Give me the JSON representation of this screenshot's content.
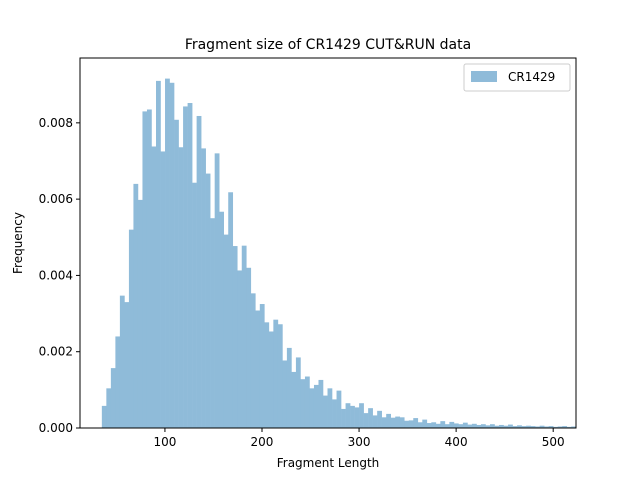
{
  "chart_data": {
    "type": "bar",
    "title": "Fragment size of CR1429 CUT&RUN data",
    "xlabel": "Fragment Length",
    "ylabel": "Frequency",
    "xlim": [
      12.5,
      523.5
    ],
    "ylim": [
      0,
      0.0097
    ],
    "xticks": [
      100,
      200,
      300,
      400,
      500
    ],
    "xtick_labels": [
      "100",
      "200",
      "300",
      "400",
      "500"
    ],
    "yticks": [
      0,
      0.002,
      0.004,
      0.006,
      0.008
    ],
    "ytick_labels": [
      "0.000",
      "0.002",
      "0.004",
      "0.006",
      "0.008"
    ],
    "grid": false,
    "legend": "top-right",
    "series": [
      {
        "name": "CR1429",
        "color": "#8fbbd9",
        "bin_start": 35,
        "bin_width": 4.65,
        "values": [
          0.00058,
          0.00104,
          0.00157,
          0.0024,
          0.00347,
          0.0033,
          0.0052,
          0.0064,
          0.00598,
          0.0083,
          0.00835,
          0.00738,
          0.0091,
          0.00725,
          0.00916,
          0.00905,
          0.00808,
          0.00736,
          0.00843,
          0.00852,
          0.00643,
          0.00818,
          0.00733,
          0.00667,
          0.0055,
          0.0072,
          0.00567,
          0.00507,
          0.00618,
          0.00477,
          0.00413,
          0.00478,
          0.0042,
          0.00353,
          0.00308,
          0.00325,
          0.00277,
          0.00253,
          0.00284,
          0.00272,
          0.00177,
          0.0021,
          0.00147,
          0.00185,
          0.00128,
          0.00135,
          0.00104,
          0.00113,
          0.00126,
          0.00085,
          0.00104,
          0.00075,
          0.00098,
          0.0005,
          0.00065,
          0.00058,
          0.00054,
          0.00065,
          0.00039,
          0.00052,
          0.00033,
          0.00045,
          0.00028,
          0.00037,
          0.00027,
          0.0003,
          0.00028,
          0.00019,
          0.0002,
          0.00026,
          0.00015,
          0.00022,
          0.00013,
          0.00015,
          0.00011,
          0.00018,
          0.0001,
          0.00016,
          0.00012,
          0.0001,
          0.00014,
          9e-05,
          0.00011,
          8e-05,
          0.0001,
          7e-05,
          0.0001,
          6e-05,
          8e-05,
          6e-05,
          9e-05,
          5e-05,
          7e-05,
          5e-05,
          6e-05,
          5e-05,
          4e-05,
          6e-05,
          4e-05,
          5e-05,
          3e-05,
          4e-05,
          5e-05,
          3e-05,
          4e-05
        ]
      }
    ]
  }
}
